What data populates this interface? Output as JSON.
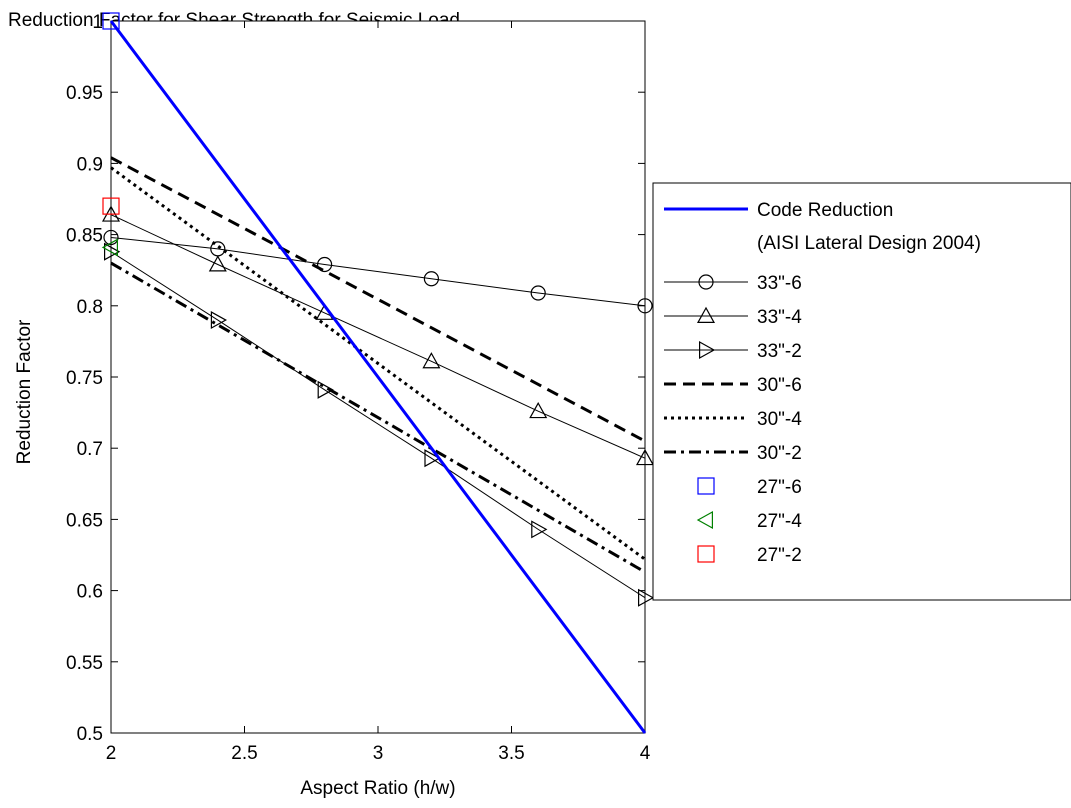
{
  "chart_data": {
    "type": "line",
    "title": "Reduction Factor for Shear Strength for Seismic Load",
    "xlabel": "Aspect Ratio (h/w)",
    "ylabel": "Reduction Factor",
    "xlim": [
      2,
      4
    ],
    "ylim": [
      0.5,
      1
    ],
    "xticks": [
      2,
      2.5,
      3,
      3.5,
      4
    ],
    "xtick_labels": [
      "2",
      "2.5",
      "3",
      "3.5",
      "4"
    ],
    "yticks": [
      0.5,
      0.55,
      0.6,
      0.65,
      0.7,
      0.75,
      0.8,
      0.85,
      0.9,
      0.95,
      1
    ],
    "ytick_labels": [
      "0.5",
      "0.55",
      "0.6",
      "0.65",
      "0.7",
      "0.75",
      "0.8",
      "0.85",
      "0.9",
      "0.95",
      "1"
    ],
    "grid": false,
    "legend_position": "outside-right",
    "series": [
      {
        "name": "Code Reduction",
        "name_line2": "(AISI Lateral Design 2004)",
        "x": [
          2,
          4
        ],
        "y": [
          1.0,
          0.5
        ],
        "color": "#0000ff",
        "line": "solid",
        "width": 3,
        "marker": "none"
      },
      {
        "name": "33\"-6",
        "x": [
          2,
          2.4,
          2.8,
          3.2,
          3.6,
          4
        ],
        "y": [
          0.848,
          0.84,
          0.829,
          0.819,
          0.809,
          0.8
        ],
        "color": "#000000",
        "line": "solid",
        "width": 1,
        "marker": "circle"
      },
      {
        "name": "33\"-4",
        "x": [
          2,
          2.4,
          2.8,
          3.2,
          3.6,
          4
        ],
        "y": [
          0.864,
          0.829,
          0.795,
          0.761,
          0.726,
          0.693
        ],
        "color": "#000000",
        "line": "solid",
        "width": 1,
        "marker": "triangle-up"
      },
      {
        "name": "33\"-2",
        "x": [
          2,
          2.4,
          2.8,
          3.2,
          3.6,
          4
        ],
        "y": [
          0.838,
          0.79,
          0.741,
          0.693,
          0.643,
          0.595
        ],
        "color": "#000000",
        "line": "solid",
        "width": 1,
        "marker": "triangle-right"
      },
      {
        "name": "30\"-6",
        "x": [
          2,
          4
        ],
        "y": [
          0.904,
          0.705
        ],
        "color": "#000000",
        "line": "dashed",
        "width": 3,
        "marker": "none"
      },
      {
        "name": "30\"-4",
        "x": [
          2,
          4
        ],
        "y": [
          0.897,
          0.622
        ],
        "color": "#000000",
        "line": "dotted",
        "width": 3,
        "marker": "none"
      },
      {
        "name": "30\"-2",
        "x": [
          2,
          4
        ],
        "y": [
          0.83,
          0.613
        ],
        "color": "#000000",
        "line": "dashdot",
        "width": 3,
        "marker": "none"
      },
      {
        "name": "27\"-6",
        "x": [
          2
        ],
        "y": [
          1.0
        ],
        "color": "#0000ff",
        "line": "none",
        "width": 1,
        "marker": "square"
      },
      {
        "name": "27\"-4",
        "x": [
          2
        ],
        "y": [
          0.841
        ],
        "color": "#008000",
        "line": "none",
        "width": 1,
        "marker": "triangle-left"
      },
      {
        "name": "27\"-2",
        "x": [
          2
        ],
        "y": [
          0.87
        ],
        "color": "#ff0000",
        "line": "none",
        "width": 1,
        "marker": "square"
      }
    ]
  }
}
